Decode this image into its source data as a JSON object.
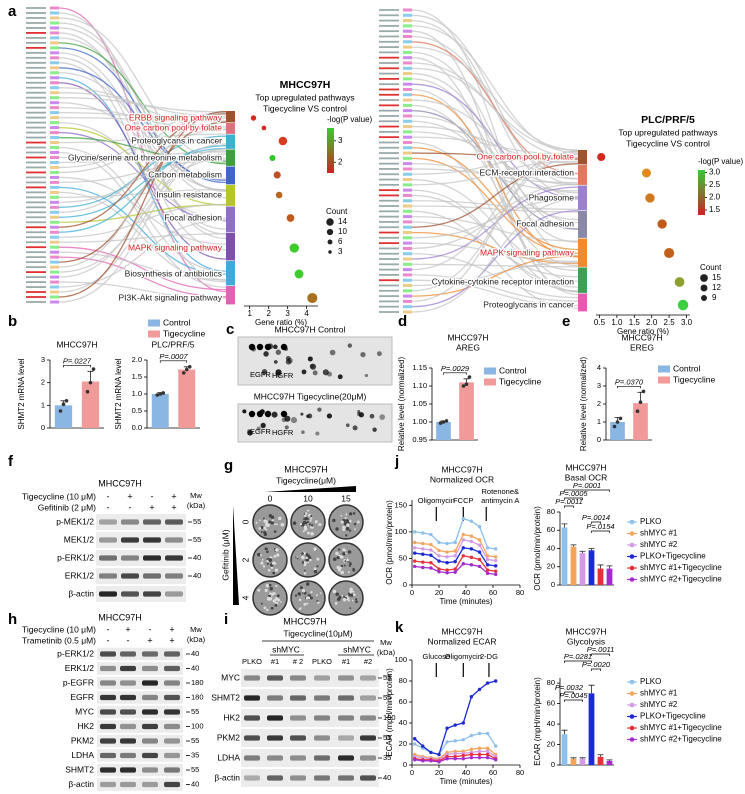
{
  "panel_labels": [
    "a",
    "b",
    "c",
    "d",
    "e",
    "f",
    "g",
    "h",
    "i",
    "j",
    "k"
  ],
  "chart_data": [
    {
      "type": "dot",
      "title": [
        "MHCC97H",
        "Top upregulated pathways",
        "Tigecycline VS control"
      ],
      "categories": [
        "ERBB signaling pathway",
        "One carbon pool by folate",
        "Proteoglycans in cancer",
        "Glycine/serine and threonine metabolism",
        "Carbon metabolism",
        "Insulin resistance",
        "Focal adhesion",
        "MAPK signaling pathway",
        "Biosynthesis of antibiotics",
        "PI3K-Akt signaling pathway"
      ],
      "category_colors": [
        "#d62020",
        "#d62020",
        "#222222",
        "#222222",
        "#222222",
        "#222222",
        "#222222",
        "#d62020",
        "#222222",
        "#222222"
      ],
      "bar_colors": [
        "#a0522d",
        "#e07080",
        "#3fb0d0",
        "#3ca03c",
        "#3f66c6",
        "#b6c52a",
        "#8f6fc8",
        "#7e4fb0",
        "#41a8e0",
        "#e062b2"
      ],
      "values": [
        1.2,
        1.75,
        2.75,
        2.2,
        2.45,
        2.55,
        3.15,
        3.35,
        3.6,
        4.3
      ],
      "sizes": [
        4,
        3,
        10,
        5,
        7,
        6,
        8,
        12,
        11,
        14
      ],
      "colors": [
        "#d42a1e",
        "#d8261c",
        "#d83a20",
        "#2fc82a",
        "#c0501e",
        "#b8641c",
        "#bf5a1c",
        "#3ccc2a",
        "#40cc30",
        "#a8701e"
      ],
      "xlim": [
        0.7,
        4.6
      ],
      "xticks": [
        1,
        2,
        3,
        4
      ],
      "xlabel": "Gene ratio (%)",
      "color_legend": {
        "title": "-log(P value)",
        "lim": [
          1.5,
          3.6
        ],
        "ticks": [
          3,
          2
        ],
        "colors": [
          "#33cc33",
          "#cc2222"
        ]
      },
      "size_legend": {
        "title": "Count",
        "values": [
          14,
          10,
          6,
          3
        ]
      }
    },
    {
      "type": "dot",
      "title": [
        "PLC/PRF/5",
        "Top upregulated pathways",
        "Tigecycline VS control"
      ],
      "categories": [
        "One carbon pool by folate",
        "ECM-receptor interaction",
        "Phagosome",
        "Focal adhesion",
        "MAPK signaling pathway",
        "Cytokine-cytokine receptor interaction",
        "Proteoglycans in cancer"
      ],
      "category_colors": [
        "#d62020",
        "#222222",
        "#222222",
        "#222222",
        "#d62020",
        "#222222",
        "#222222"
      ],
      "bar_colors": [
        "#a0522d",
        "#e07a5f",
        "#9b7fd0",
        "#8a8aa8",
        "#f08a30",
        "#3ca055",
        "#e45cb0"
      ],
      "values": [
        0.55,
        1.85,
        1.95,
        2.3,
        2.5,
        2.8,
        2.9
      ],
      "sizes": [
        9,
        11,
        12,
        12,
        14,
        13,
        15
      ],
      "colors": [
        "#d42a1e",
        "#e08a1e",
        "#d0781e",
        "#c05a1a",
        "#c0601a",
        "#8ca030",
        "#3cd040"
      ],
      "xlim": [
        0.4,
        3.1
      ],
      "xticks": [
        0.5,
        {
          "value": 1,
          "label": "1.0"
        },
        1.5,
        {
          "value": 2,
          "label": "2.0"
        },
        2.5,
        {
          "value": 3,
          "label": "3.0"
        }
      ],
      "xlabel": "Gene ratio (%)",
      "color_legend": {
        "title": "-log(P value)",
        "lim": [
          1.3,
          3.1
        ],
        "ticks": [
          {
            "value": 3,
            "label": "3.0"
          },
          2.5,
          {
            "value": 2,
            "label": "2.0"
          },
          1.5
        ],
        "colors": [
          "#33cc33",
          "#cc2222"
        ]
      },
      "size_legend": {
        "title": "Count",
        "values": [
          15,
          12,
          9
        ]
      }
    },
    {
      "type": "bar",
      "title": [
        "MHCC97H"
      ],
      "categories": [
        "Control",
        "Tigecycline"
      ],
      "legend": true,
      "colors": [
        "#8ab6e3",
        "#f29a9a"
      ],
      "values": [
        1.0,
        2.05
      ],
      "errors": [
        0.2,
        0.45
      ],
      "points": [
        [
          0.75,
          1.05,
          1.2
        ],
        [
          1.6,
          2.0,
          2.6
        ]
      ],
      "ylim": [
        0,
        3
      ],
      "yticks": [
        0,
        1,
        2,
        3
      ],
      "ylabel": "SHMT2 mRNA level",
      "p_values": [
        "P=.0227"
      ]
    },
    {
      "type": "bar",
      "title": [
        "PLC/PRF/5"
      ],
      "colors": [
        "#8ab6e3",
        "#f29a9a"
      ],
      "values": [
        1.0,
        1.72
      ],
      "errors": [
        0.04,
        0.08
      ],
      "points": [
        [
          0.97,
          1.0,
          1.03
        ],
        [
          1.62,
          1.72,
          1.8
        ]
      ],
      "ylim": [
        0,
        2
      ],
      "yticks": [
        {
          "value": 0,
          "label": "0.0"
        },
        0.5,
        {
          "value": 1,
          "label": "1.0"
        },
        1.5,
        {
          "value": 2,
          "label": "2.0"
        }
      ],
      "ylabel": "SHMT2 mRNA level",
      "p_values": [
        "P=.0007"
      ]
    },
    {
      "type": "bar",
      "title": [
        "MHCC97H",
        "AREG"
      ],
      "categories": [
        "Control",
        "Tigecycline"
      ],
      "legend": true,
      "colors": [
        "#8ab6e3",
        "#f29a9a"
      ],
      "values": [
        1.0,
        1.11
      ],
      "errors": [
        0.003,
        0.01
      ],
      "points": [
        [
          0.997,
          1.0,
          1.003
        ],
        [
          1.1,
          1.105,
          1.125
        ]
      ],
      "ylim": [
        0.95,
        1.15
      ],
      "yticks": [
        0.95,
        {
          "value": 1,
          "label": "1.00"
        },
        1.05,
        {
          "value": 1.1,
          "label": "1.10"
        },
        1.15
      ],
      "ylabel": "Relative level (normalized)",
      "p_values": [
        "P=.0029"
      ]
    },
    {
      "type": "bar",
      "title": [
        "MHCC97H",
        "EREG"
      ],
      "categories": [
        "Control",
        "Tigecycline"
      ],
      "legend": true,
      "colors": [
        "#8ab6e3",
        "#f29a9a"
      ],
      "values": [
        1.0,
        2.05
      ],
      "errors": [
        0.25,
        0.6
      ],
      "points": [
        [
          0.75,
          1.0,
          1.2
        ],
        [
          1.6,
          2.1,
          2.7
        ]
      ],
      "ylim": [
        0,
        4
      ],
      "yticks": [
        0,
        1,
        2,
        3,
        4
      ],
      "ylabel": "Relative level (normalized)",
      "p_values": [
        "P=.0370"
      ]
    },
    {
      "type": "line",
      "title": [
        "MHCC97H",
        "Normalized OCR"
      ],
      "x": [
        2,
        8,
        14,
        20,
        26,
        32,
        38,
        44,
        50,
        56,
        62
      ],
      "series": [
        {
          "name": "PLKO",
          "color": "#8cc0ee",
          "values": [
            100,
            98,
            95,
            80,
            78,
            80,
            125,
            120,
            110,
            70,
            68
          ]
        },
        {
          "name": "shMYC #1",
          "color": "#f5a55a",
          "values": [
            80,
            78,
            76,
            65,
            62,
            64,
            95,
            92,
            85,
            55,
            53
          ]
        },
        {
          "name": "shMYC #2",
          "color": "#d59ae6",
          "values": [
            70,
            68,
            66,
            55,
            53,
            55,
            85,
            82,
            75,
            48,
            46
          ]
        },
        {
          "name": "PLKO+Tigecycline",
          "color": "#1a2ad6",
          "values": [
            60,
            58,
            56,
            45,
            42,
            44,
            70,
            68,
            62,
            38,
            36
          ]
        },
        {
          "name": "shMYC #1+Tigecycline",
          "color": "#e8303c",
          "values": [
            45,
            43,
            42,
            30,
            28,
            30,
            55,
            52,
            48,
            28,
            26
          ]
        },
        {
          "name": "shMYC #2+Tigecycline",
          "color": "#a52bd0",
          "values": [
            35,
            33,
            32,
            25,
            23,
            24,
            40,
            38,
            35,
            22,
            20
          ]
        }
      ],
      "xlim": [
        0,
        80
      ],
      "xticks": [
        0,
        20,
        40,
        60,
        80
      ],
      "ylim": [
        0,
        160
      ],
      "yticks": [
        0,
        50,
        100,
        150
      ],
      "xlabel": "Time (minutes)",
      "ylabel": "OCR (pmol/min/protein)",
      "annotations": [
        [
          "Oligomycin"
        ],
        [
          "FCCP"
        ],
        [
          "Rotenone&",
          "antimycin A"
        ]
      ]
    },
    {
      "type": "bar",
      "title": [
        "MHCC97H",
        "Basal OCR"
      ],
      "colors": [
        "#8cc0ee",
        "#f5a55a",
        "#d59ae6",
        "#1a2ad6",
        "#e8303c",
        "#a52bd0"
      ],
      "values": [
        63,
        42,
        35,
        38,
        18,
        18
      ],
      "errors": [
        4,
        2,
        2,
        2,
        4,
        3
      ],
      "ylim": [
        0,
        80
      ],
      "yticks": [
        0,
        20,
        40,
        60,
        80
      ],
      "ylabel": "OCR (pmol/min/protein)",
      "p_values": [
        "P=.0001",
        "P=.0005",
        "P=.0011",
        "P=.0014",
        "P=.0154"
      ]
    },
    {
      "type": "line",
      "title": [
        "MHCC97H",
        "Normalized ECAR"
      ],
      "x": [
        2,
        8,
        14,
        20,
        26,
        32,
        38,
        44,
        50,
        56,
        62
      ],
      "series": [
        {
          "name": "PLKO",
          "color": "#8cc0ee",
          "values": [
            20,
            16,
            12,
            10,
            22,
            23,
            24,
            28,
            30,
            30,
            18
          ]
        },
        {
          "name": "shMYC #1",
          "color": "#f5a55a",
          "values": [
            10,
            8,
            7,
            6,
            12,
            13,
            13,
            15,
            16,
            16,
            10
          ]
        },
        {
          "name": "shMYC #2",
          "color": "#d59ae6",
          "values": [
            8,
            7,
            6,
            5,
            10,
            11,
            11,
            12,
            13,
            13,
            8
          ]
        },
        {
          "name": "PLKO+Tigecycline",
          "color": "#1a2ad6",
          "values": [
            25,
            18,
            12,
            10,
            35,
            38,
            40,
            65,
            72,
            78,
            80
          ]
        },
        {
          "name": "shMYC #1+Tigecycline",
          "color": "#e8303c",
          "values": [
            6,
            5,
            5,
            4,
            8,
            8,
            9,
            10,
            10,
            10,
            6
          ]
        },
        {
          "name": "shMYC #2+Tigecycline",
          "color": "#a52bd0",
          "values": [
            5,
            4,
            4,
            3,
            6,
            6,
            6,
            7,
            7,
            7,
            5
          ]
        }
      ],
      "xlim": [
        0,
        80
      ],
      "xticks": [
        0,
        20,
        40,
        60,
        80
      ],
      "ylim": [
        0,
        100
      ],
      "yticks": [
        0,
        20,
        40,
        60,
        80,
        100
      ],
      "xlabel": "Time (minutes)",
      "ylabel": "ECAR (mpH/min/protein)",
      "annotations": [
        [
          "Glucose"
        ],
        [
          "Oligomycin"
        ],
        [
          "2-DG"
        ]
      ]
    },
    {
      "type": "bar",
      "title": [
        "MHCC97H",
        "Glycolysis"
      ],
      "colors": [
        "#8cc0ee",
        "#f5a55a",
        "#d59ae6",
        "#1a2ad6",
        "#e8303c",
        "#a52bd0"
      ],
      "values": [
        30,
        6,
        6,
        70,
        8,
        4
      ],
      "errors": [
        4,
        1,
        1,
        8,
        2,
        1
      ],
      "ylim": [
        0,
        85
      ],
      "yticks": [
        0,
        20,
        40,
        60,
        80
      ],
      "ylabel": "ECAR (mpH/min/protein)",
      "p_values": [
        "P=.0281",
        "P=.0011",
        "P=.0020",
        "P=.0032",
        "P=.0045"
      ]
    }
  ],
  "blots": {
    "c": {
      "titles": [
        "MHCC97H Control",
        "MHCC97H Tigecycline(20μM)"
      ],
      "labels": [
        "EGFR",
        "HGFR"
      ]
    },
    "f": {
      "title": "MHCC97H",
      "conditions": [
        {
          "name": "Tigecycline (10 μM)",
          "signs": [
            "-",
            "+",
            "-",
            "+"
          ]
        },
        {
          "name": "Gefitinib (2 μM)",
          "signs": [
            "-",
            "-",
            "+",
            "+"
          ]
        }
      ],
      "mw": [
        "Mw",
        "(kDa)"
      ],
      "bands": [
        {
          "name": "p-MEK1/2",
          "kda": 55
        },
        {
          "name": "MEK1/2",
          "kda": 55
        },
        {
          "name": "p-ERK1/2",
          "kda": 40
        },
        {
          "name": "ERK1/2",
          "kda": 40
        },
        {
          "name": "β-actin"
        }
      ]
    },
    "g": {
      "title": "MHCC97H",
      "x_label": "Tigecycline(μM)",
      "x_levels": [
        0,
        10,
        15
      ],
      "y_label": "Gefitinib (μM)",
      "y_levels": [
        0,
        2,
        4
      ]
    },
    "h": {
      "title": "MHCC97H",
      "conditions": [
        {
          "name": "Tigecycline (10 μM)",
          "signs": [
            "-",
            "+",
            "-",
            "+"
          ]
        },
        {
          "name": "Trametinib (0.5 μM)",
          "signs": [
            "-",
            "-",
            "+",
            "+"
          ]
        }
      ],
      "mw": [
        "Mw",
        "(kDa)"
      ],
      "bands": [
        {
          "name": "p-ERK1/2",
          "kda": 40
        },
        {
          "name": "ERK1/2",
          "kda": 40
        },
        {
          "name": "p-EGFR",
          "kda": 180
        },
        {
          "name": "EGFR",
          "kda": 180
        },
        {
          "name": "MYC",
          "kda": 55
        },
        {
          "name": "HK2",
          "kda": 100
        },
        {
          "name": "PKM2",
          "kda": 55
        },
        {
          "name": "LDHA",
          "kda": 35
        },
        {
          "name": "SHMT2",
          "kda": 55
        },
        {
          "name": "β-actin",
          "kda": 40
        }
      ]
    },
    "i": {
      "title": "MHCC97H",
      "subtitle": "Tigecycline(10μM)",
      "groups": [
        "shMYC",
        "shMYC"
      ],
      "lanes": [
        "PLKO",
        "#1",
        "# 2",
        "PLKO",
        "#1",
        "#2"
      ],
      "mw": [
        "Mw",
        "(kDa)"
      ],
      "bands": [
        {
          "name": "MYC",
          "kda": 55
        },
        {
          "name": "SHMT2",
          "kda": 55
        },
        {
          "name": "HK2",
          "kda": 100
        },
        {
          "name": "PKM2",
          "kda": 55
        },
        {
          "name": "LDHA",
          "kda": 35
        },
        {
          "name": "β-actin",
          "kda": 40
        }
      ]
    }
  }
}
